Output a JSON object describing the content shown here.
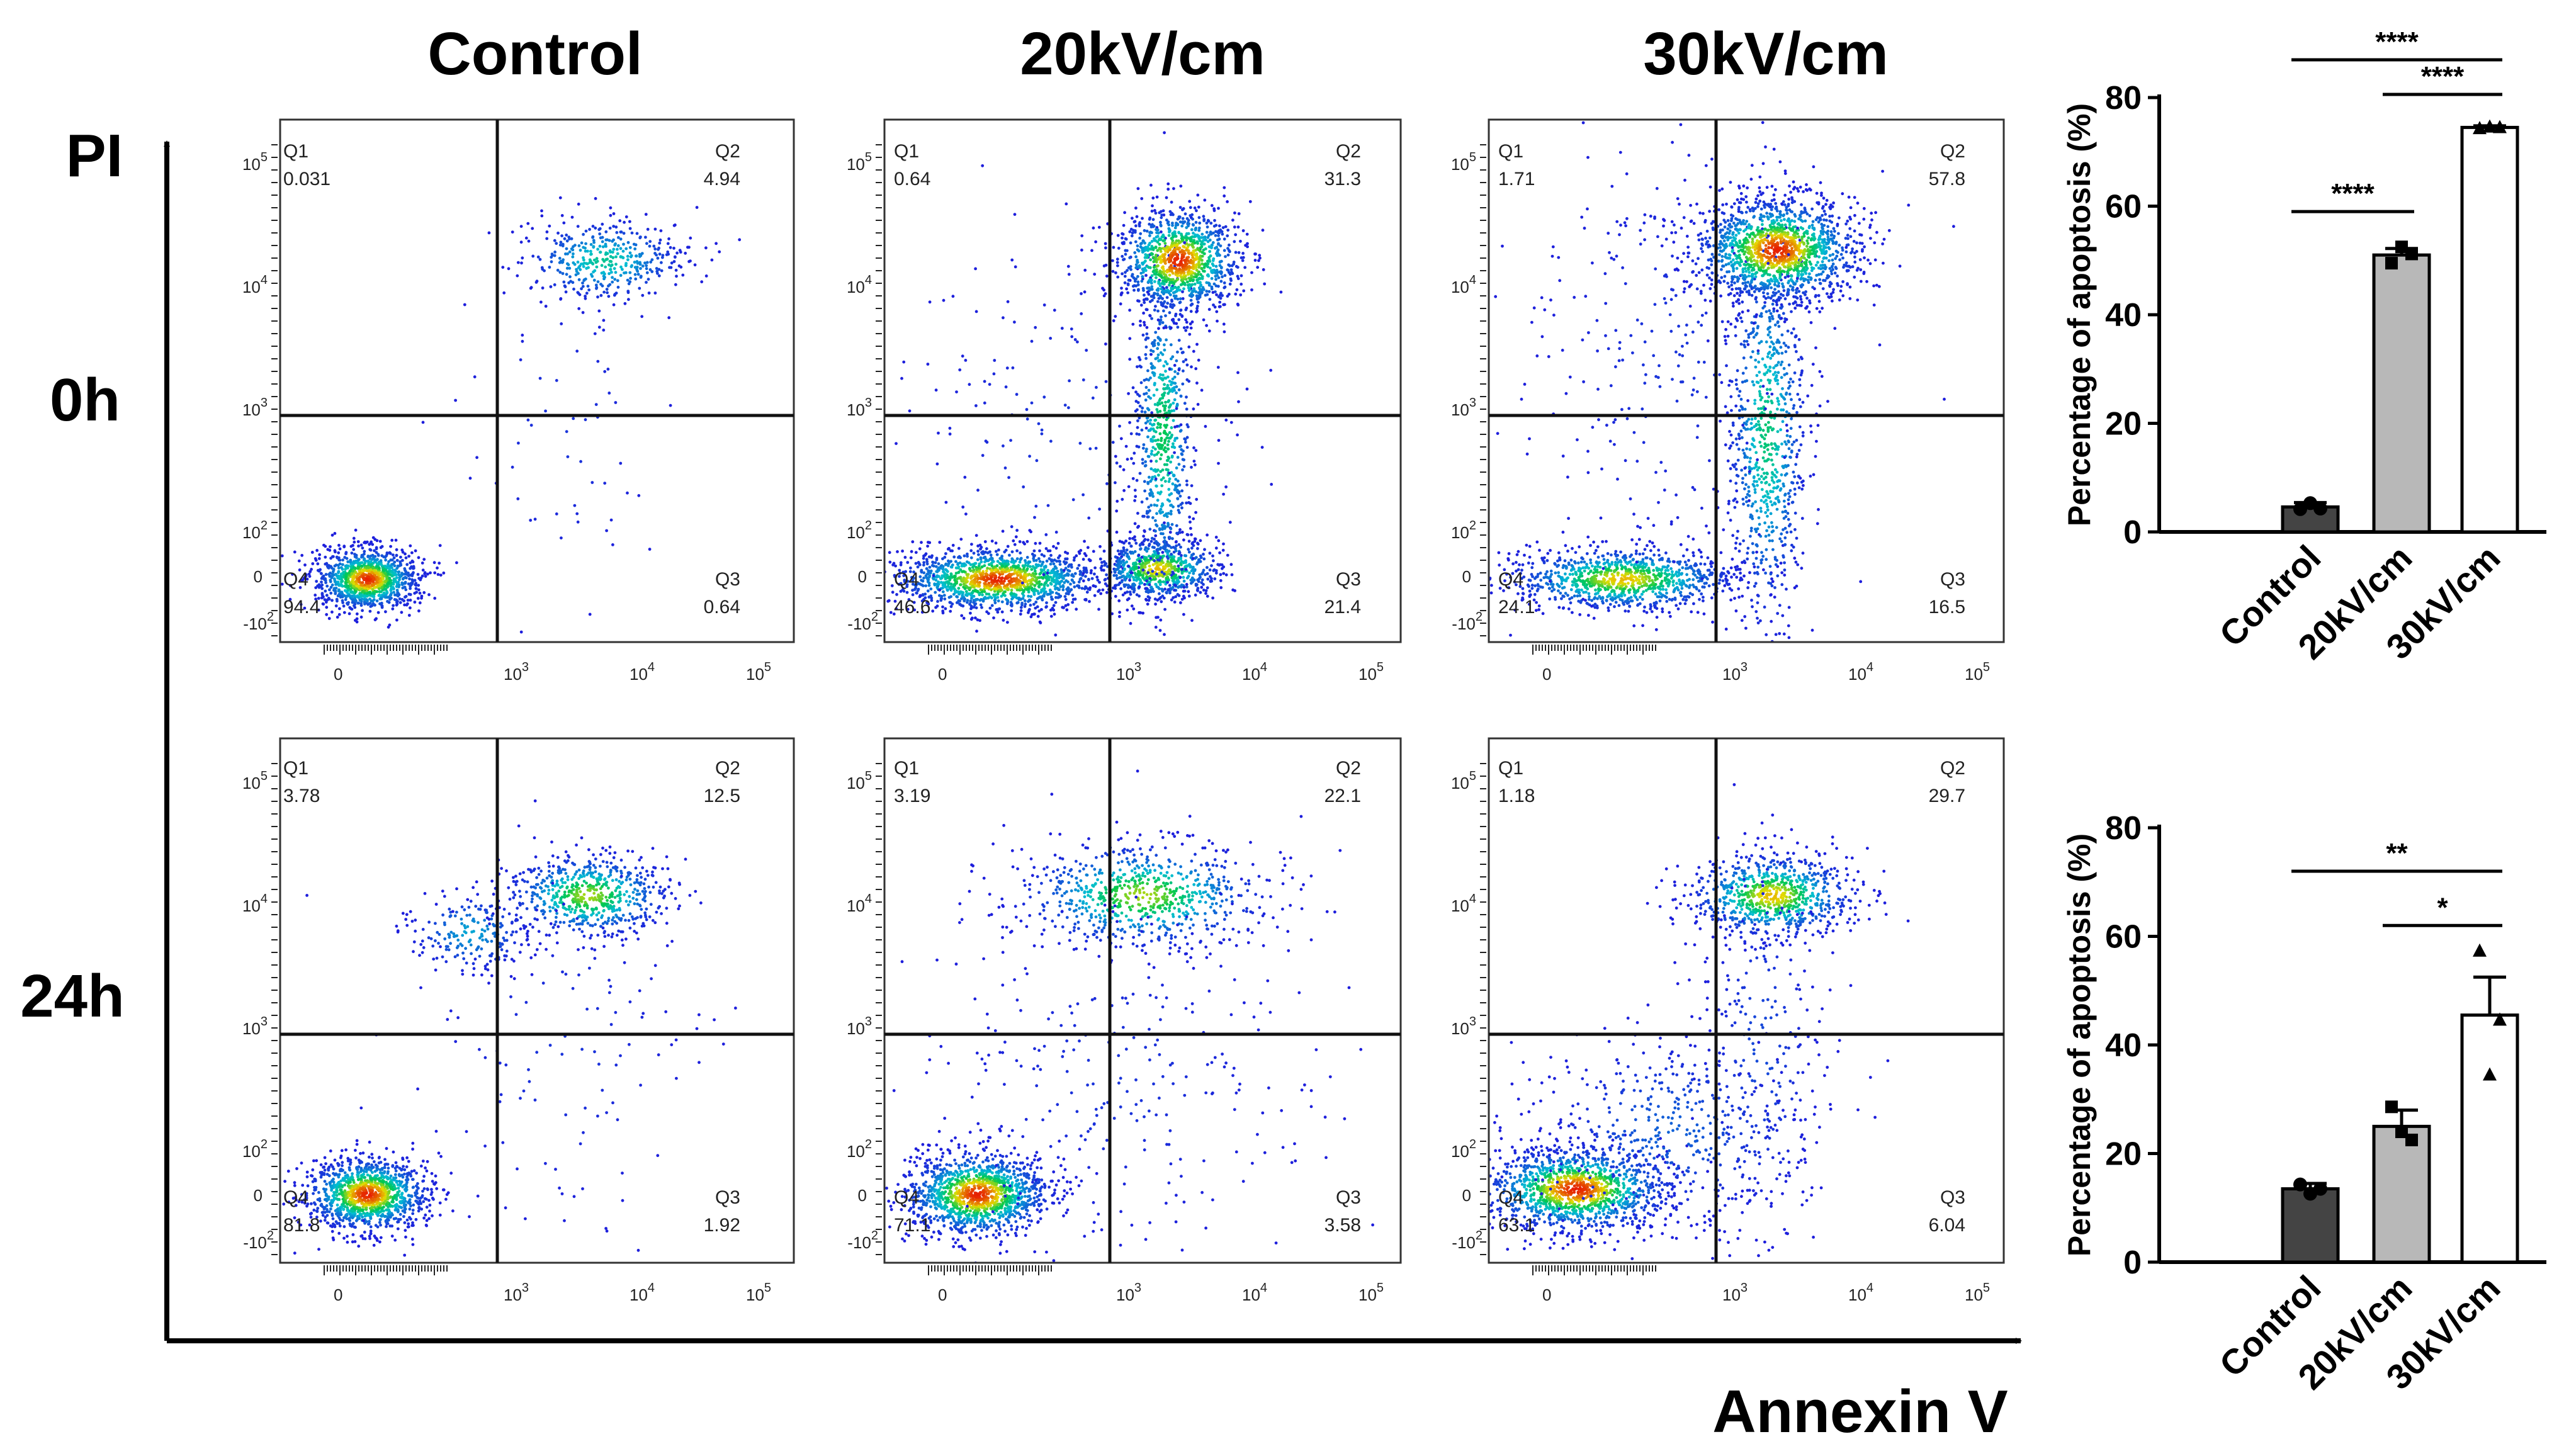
{
  "chart_data": {
    "type": "scatter",
    "column_headers": [
      "Control",
      "20kV/cm",
      "30kV/cm"
    ],
    "row_labels": [
      "0h",
      "24h"
    ],
    "y_axis_title": "PI",
    "x_axis_title": "Annexin V",
    "quadrant_names": [
      "Q1",
      "Q2",
      "Q3",
      "Q4"
    ],
    "tick_labels": {
      "zero": "0",
      "neg": "-10",
      "pos": [
        "10",
        "10",
        "10"
      ],
      "exp": [
        "2",
        "3",
        "4",
        "5"
      ]
    },
    "plots": [
      {
        "row": "0h",
        "group": "Control",
        "q": [
          "0.031",
          "4.94",
          "0.64",
          "94.4"
        ]
      },
      {
        "row": "0h",
        "group": "20kV/cm",
        "q": [
          "0.64",
          "31.3",
          "21.4",
          "46.6"
        ]
      },
      {
        "row": "0h",
        "group": "30kV/cm",
        "q": [
          "1.71",
          "57.8",
          "16.5",
          "24.1"
        ]
      },
      {
        "row": "24h",
        "group": "Control",
        "q": [
          "3.78",
          "12.5",
          "1.92",
          "81.8"
        ]
      },
      {
        "row": "24h",
        "group": "20kV/cm",
        "q": [
          "3.19",
          "22.1",
          "3.58",
          "71.1"
        ]
      },
      {
        "row": "24h",
        "group": "30kV/cm",
        "q": [
          "1.18",
          "29.7",
          "6.04",
          "63.1"
        ]
      }
    ],
    "bar_charts": [
      {
        "type": "bar",
        "row": "0h",
        "ylabel": "Percentage of apoptosis (%)",
        "ylim": [
          0,
          80
        ],
        "yticks": [
          0,
          20,
          40,
          60,
          80
        ],
        "categories": [
          "Control",
          "20kV/cm",
          "30kV/cm"
        ],
        "values": [
          4.6,
          51,
          74.5
        ],
        "errors": [
          0.8,
          1.2,
          0.3
        ],
        "points": [
          [
            4.2,
            5.3,
            4.3
          ],
          [
            49.5,
            52.5,
            51.2
          ],
          [
            74.3,
            74.6,
            74.5
          ]
        ],
        "colors": [
          "#444444",
          "#b8b8b8",
          "#ffffff"
        ],
        "markers": [
          "circle",
          "square",
          "triangle"
        ],
        "significance": [
          {
            "from": 0,
            "to": 2,
            "label": "****"
          },
          {
            "from": 1,
            "to": 2,
            "label": "****"
          },
          {
            "from": 0,
            "to": 1,
            "label": "****"
          }
        ]
      },
      {
        "type": "bar",
        "row": "24h",
        "ylabel": "Percentage of apoptosis (%)",
        "ylim": [
          0,
          80
        ],
        "yticks": [
          0,
          20,
          40,
          60,
          80
        ],
        "categories": [
          "Control",
          "20kV/cm",
          "30kV/cm"
        ],
        "values": [
          13.5,
          25,
          45.5
        ],
        "errors": [
          1,
          3,
          7
        ],
        "points": [
          [
            14.3,
            12.6,
            13.5
          ],
          [
            28.6,
            24,
            22.5
          ],
          [
            57.3,
            34.5,
            44.6
          ]
        ],
        "colors": [
          "#444444",
          "#b8b8b8",
          "#ffffff"
        ],
        "markers": [
          "circle",
          "square",
          "triangle"
        ],
        "significance": [
          {
            "from": 0,
            "to": 2,
            "label": "**"
          },
          {
            "from": 1,
            "to": 2,
            "label": "*"
          }
        ]
      }
    ]
  }
}
